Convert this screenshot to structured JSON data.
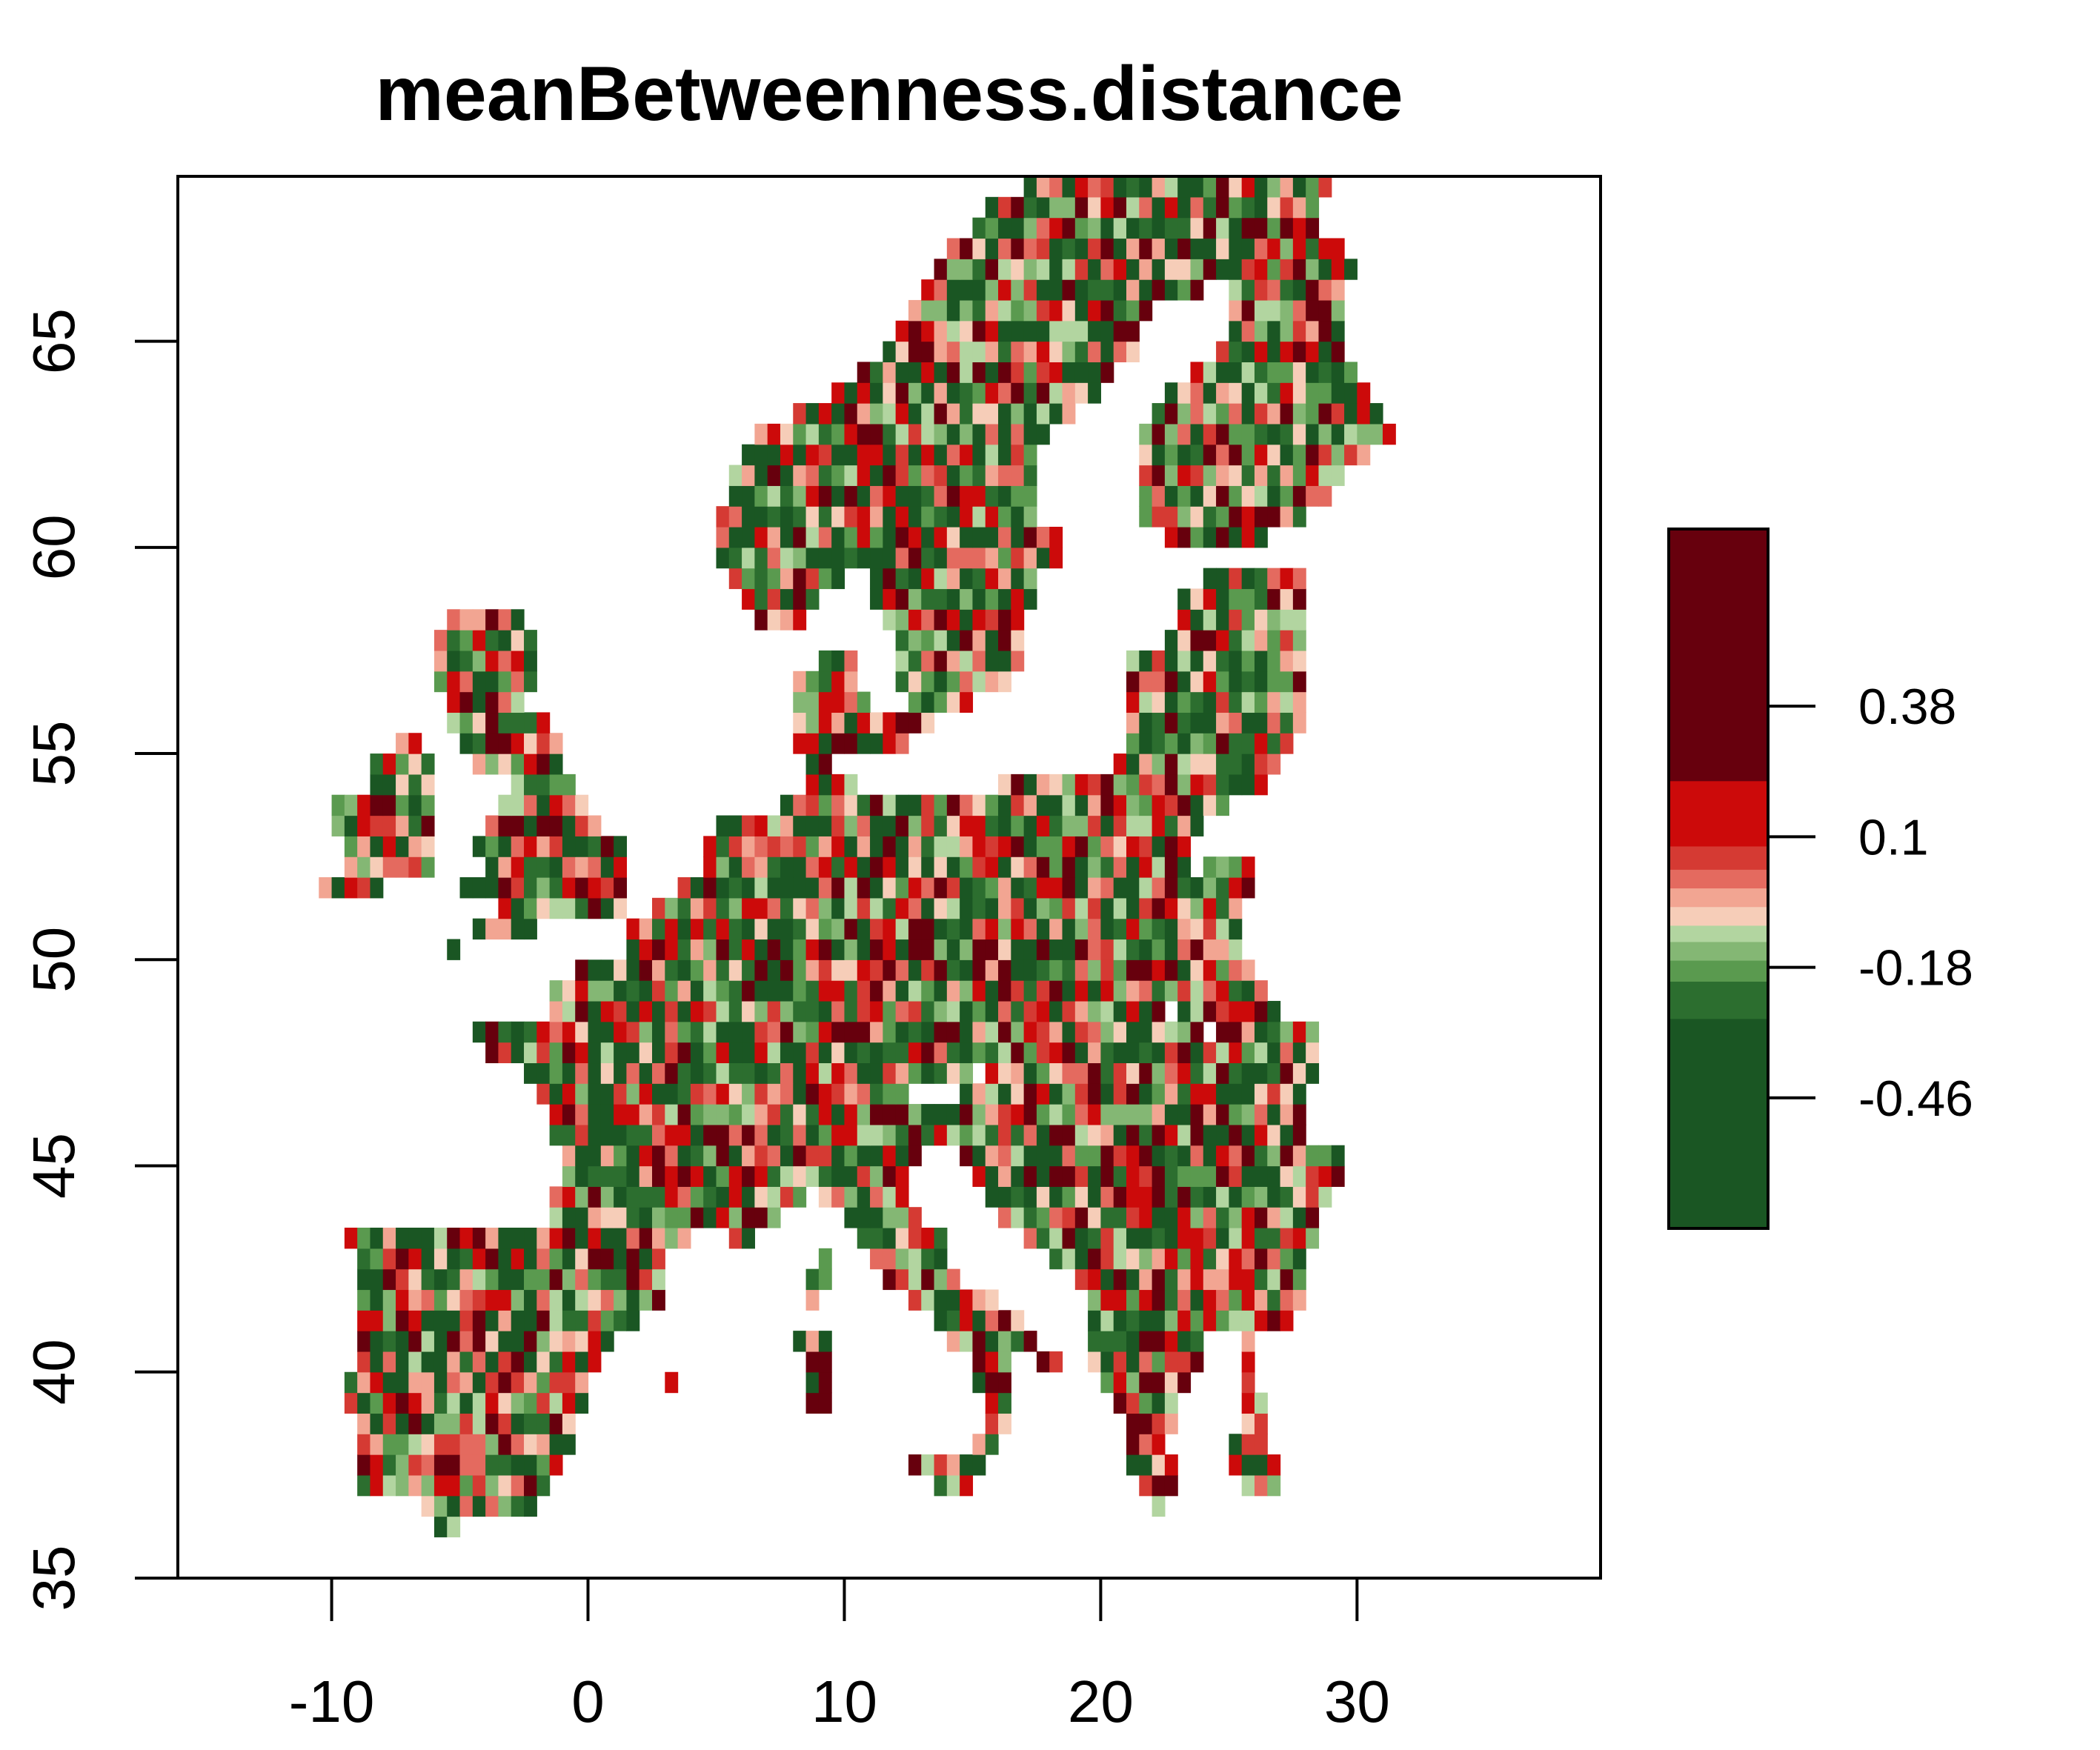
{
  "title": "meanBetweenness.distance",
  "x_axis": {
    "ticks": [
      "-10",
      "0",
      "10",
      "20",
      "30"
    ],
    "tick_values": [
      -10,
      0,
      10,
      20,
      30
    ],
    "range": [
      -16,
      39.5
    ]
  },
  "y_axis": {
    "ticks": [
      "35",
      "40",
      "45",
      "50",
      "55",
      "60",
      "65"
    ],
    "tick_values": [
      35,
      40,
      45,
      50,
      55,
      60,
      65
    ],
    "range": [
      35,
      69
    ]
  },
  "legend": {
    "ticks": [
      "0.38",
      "0.1",
      "-0.18",
      "-0.46"
    ],
    "tick_values": [
      0.38,
      0.1,
      -0.18,
      -0.46
    ],
    "value_range": [
      -0.74,
      0.76
    ],
    "bands": [
      {
        "from": -0.74,
        "to": -0.29,
        "color": "#1a5623"
      },
      {
        "from": -0.29,
        "to": -0.21,
        "color": "#2c6e2f"
      },
      {
        "from": -0.21,
        "to": -0.165,
        "color": "#5a9a4f"
      },
      {
        "from": -0.165,
        "to": -0.125,
        "color": "#84b774"
      },
      {
        "from": -0.125,
        "to": -0.09,
        "color": "#b2d5a0"
      },
      {
        "from": -0.09,
        "to": -0.05,
        "color": "#f6cdb8"
      },
      {
        "from": -0.05,
        "to": -0.01,
        "color": "#f2a592"
      },
      {
        "from": -0.01,
        "to": 0.03,
        "color": "#e46a5f"
      },
      {
        "from": 0.03,
        "to": 0.08,
        "color": "#d53a33"
      },
      {
        "from": 0.08,
        "to": 0.22,
        "color": "#cc0a0a"
      },
      {
        "from": 0.22,
        "to": 0.76,
        "color": "#67000d"
      }
    ]
  },
  "cell_palette": [
    "#1a5623",
    "#2c6e2f",
    "#5a9a4f",
    "#84b774",
    "#b2d5a0",
    "#f6cdb8",
    "#f2a592",
    "#e46a5f",
    "#d53a33",
    "#cc0a0a",
    "#67000d"
  ],
  "cell_size_deg": 0.5
}
